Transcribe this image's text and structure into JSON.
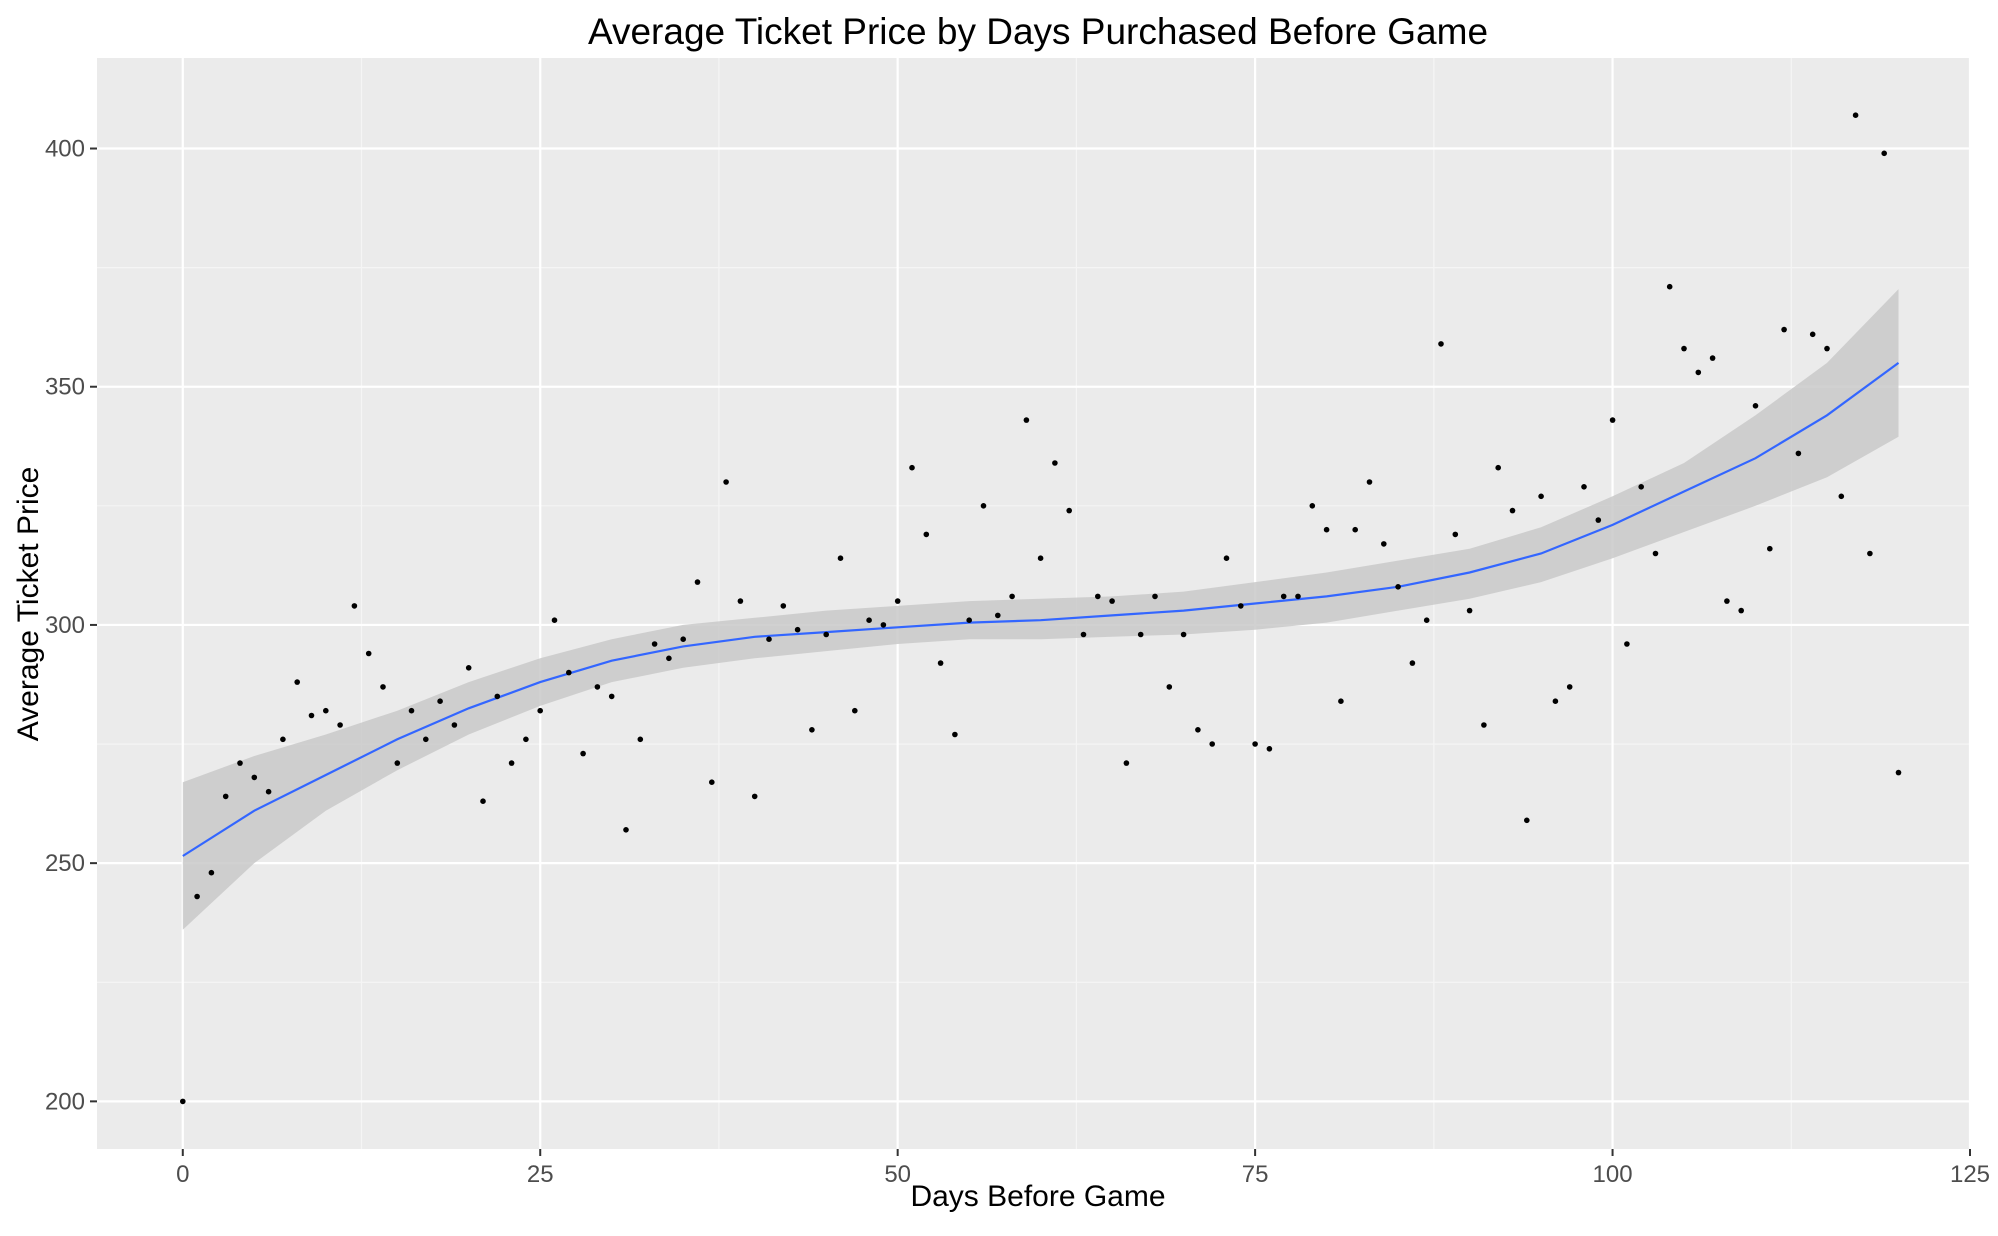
{
  "chart_data": {
    "type": "scatter",
    "title": "Average Ticket Price by Days Purchased Before Game",
    "xlabel": "Days Before Game",
    "ylabel": "Average Ticket Price",
    "xlim": [
      -6,
      125
    ],
    "ylim": [
      190,
      419
    ],
    "x_ticks": [
      0,
      25,
      50,
      75,
      100,
      125
    ],
    "y_ticks": [
      200,
      250,
      300,
      350,
      400
    ],
    "x_tick_labels": [
      "0",
      "25",
      "50",
      "75",
      "100",
      "125"
    ],
    "y_tick_labels": [
      "200",
      "250",
      "300",
      "350",
      "400"
    ],
    "grid": true,
    "legend": "none",
    "colors": {
      "panel_background": "#ebebeb",
      "grid_major": "#ffffff",
      "grid_minor": "#f5f5f5",
      "points": "#000000",
      "smooth_line": "#3366ff",
      "confidence_band": "#c9c9c9",
      "tick_text": "#4d4d4d"
    },
    "points": [
      [
        0,
        200
      ],
      [
        1,
        243
      ],
      [
        2,
        248
      ],
      [
        3,
        264
      ],
      [
        4,
        271
      ],
      [
        5,
        268
      ],
      [
        6,
        265
      ],
      [
        7,
        276
      ],
      [
        8,
        288
      ],
      [
        9,
        281
      ],
      [
        10,
        282
      ],
      [
        11,
        279
      ],
      [
        12,
        304
      ],
      [
        13,
        294
      ],
      [
        14,
        287
      ],
      [
        15,
        271
      ],
      [
        16,
        282
      ],
      [
        17,
        276
      ],
      [
        18,
        284
      ],
      [
        19,
        279
      ],
      [
        20,
        291
      ],
      [
        21,
        263
      ],
      [
        22,
        285
      ],
      [
        23,
        271
      ],
      [
        24,
        276
      ],
      [
        25,
        282
      ],
      [
        26,
        301
      ],
      [
        27,
        290
      ],
      [
        28,
        273
      ],
      [
        29,
        287
      ],
      [
        30,
        285
      ],
      [
        31,
        257
      ],
      [
        32,
        276
      ],
      [
        33,
        296
      ],
      [
        34,
        293
      ],
      [
        35,
        297
      ],
      [
        36,
        309
      ],
      [
        37,
        267
      ],
      [
        38,
        330
      ],
      [
        39,
        305
      ],
      [
        40,
        264
      ],
      [
        41,
        297
      ],
      [
        42,
        304
      ],
      [
        43,
        299
      ],
      [
        44,
        278
      ],
      [
        45,
        298
      ],
      [
        46,
        314
      ],
      [
        47,
        282
      ],
      [
        48,
        301
      ],
      [
        49,
        300
      ],
      [
        50,
        305
      ],
      [
        51,
        333
      ],
      [
        52,
        319
      ],
      [
        53,
        292
      ],
      [
        54,
        277
      ],
      [
        55,
        301
      ],
      [
        56,
        325
      ],
      [
        57,
        302
      ],
      [
        58,
        306
      ],
      [
        59,
        343
      ],
      [
        60,
        314
      ],
      [
        61,
        334
      ],
      [
        62,
        324
      ],
      [
        63,
        298
      ],
      [
        64,
        306
      ],
      [
        65,
        305
      ],
      [
        66,
        271
      ],
      [
        67,
        298
      ],
      [
        68,
        306
      ],
      [
        69,
        287
      ],
      [
        70,
        298
      ],
      [
        71,
        278
      ],
      [
        72,
        275
      ],
      [
        73,
        314
      ],
      [
        74,
        304
      ],
      [
        75,
        275
      ],
      [
        76,
        274
      ],
      [
        77,
        306
      ],
      [
        78,
        306
      ],
      [
        79,
        325
      ],
      [
        80,
        320
      ],
      [
        81,
        284
      ],
      [
        82,
        320
      ],
      [
        83,
        330
      ],
      [
        84,
        317
      ],
      [
        85,
        308
      ],
      [
        86,
        292
      ],
      [
        87,
        301
      ],
      [
        88,
        359
      ],
      [
        89,
        319
      ],
      [
        90,
        303
      ],
      [
        91,
        279
      ],
      [
        92,
        333
      ],
      [
        93,
        324
      ],
      [
        94,
        259
      ],
      [
        95,
        327
      ],
      [
        96,
        284
      ],
      [
        97,
        287
      ],
      [
        98,
        329
      ],
      [
        99,
        322
      ],
      [
        100,
        343
      ],
      [
        101,
        296
      ],
      [
        102,
        329
      ],
      [
        103,
        315
      ],
      [
        104,
        371
      ],
      [
        105,
        358
      ],
      [
        106,
        353
      ],
      [
        107,
        356
      ],
      [
        108,
        305
      ],
      [
        109,
        303
      ],
      [
        110,
        346
      ],
      [
        111,
        316
      ],
      [
        112,
        362
      ],
      [
        113,
        336
      ],
      [
        114,
        361
      ],
      [
        115,
        358
      ],
      [
        116,
        327
      ],
      [
        117,
        407
      ],
      [
        118,
        315
      ],
      [
        119,
        399
      ],
      [
        120,
        269
      ]
    ],
    "smooth_fit": {
      "x": [
        0,
        5,
        10,
        15,
        20,
        25,
        30,
        35,
        40,
        45,
        50,
        55,
        60,
        65,
        70,
        75,
        80,
        85,
        90,
        95,
        100,
        105,
        110,
        115,
        120
      ],
      "y": [
        251.5,
        261,
        268.5,
        276,
        282.5,
        288,
        292.5,
        295.5,
        297.5,
        298.5,
        299.5,
        300.5,
        301,
        302,
        303,
        304.5,
        306,
        308,
        311,
        315,
        321,
        328,
        335,
        344,
        355
      ],
      "lower": [
        236,
        250,
        261,
        269.5,
        277,
        283,
        288,
        291,
        293,
        294.5,
        296,
        297,
        297,
        297.5,
        298,
        299,
        300.5,
        303,
        305.5,
        309,
        314,
        319.5,
        325,
        331,
        339.5
      ],
      "upper": [
        267,
        272.5,
        277,
        282,
        288,
        293,
        297,
        300,
        301.5,
        303,
        304,
        305,
        305.5,
        306,
        307,
        309,
        311,
        313.5,
        316,
        320.5,
        327,
        334,
        344,
        355,
        370.5
      ]
    }
  }
}
